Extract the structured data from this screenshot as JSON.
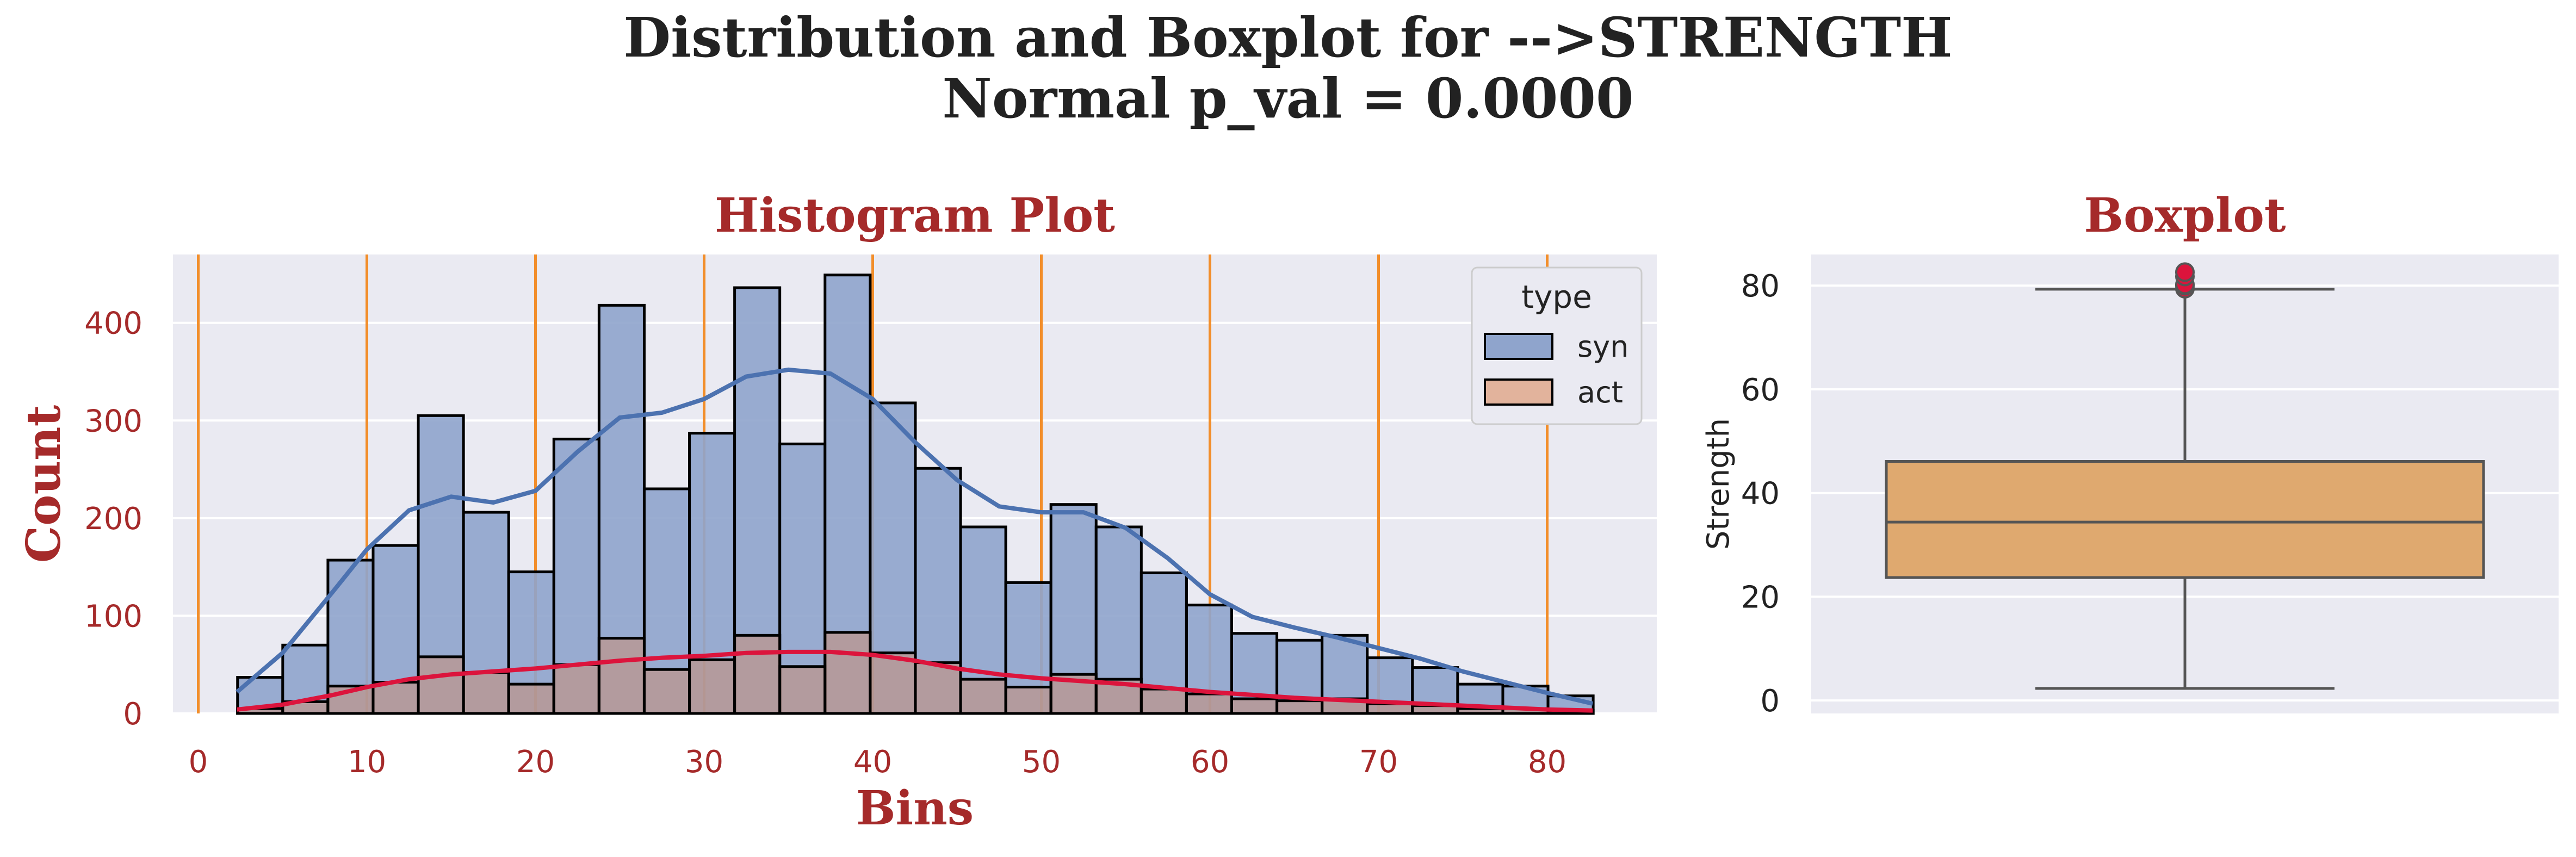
{
  "figure": {
    "suptitle_line1": "Distribution and Boxplot for -->STRENGTH",
    "suptitle_line2": "Normal p_val = 0.0000"
  },
  "colors": {
    "background": "#ffffff",
    "axes_face": "#eaeaf2",
    "grid": "#ffffff",
    "syn_fill": "#8fa4cc",
    "syn_line": "#4c72b0",
    "act_fill": "#dd8452",
    "act_line": "#dc143c",
    "bar_edge": "#000000",
    "vline": "#f28e2b",
    "title_red": "#a52a2a",
    "tick_red": "#a52a2a",
    "box_fill": "#dfa96f",
    "box_edge": "#555555",
    "outlier": "#dc143c"
  },
  "chart_data": [
    {
      "type": "bar",
      "title": "Histogram Plot",
      "xlabel": "Bins",
      "ylabel": "Count",
      "xlim": [
        -1.5,
        86.5
      ],
      "ylim": [
        0,
        470
      ],
      "xticks": [
        0,
        10,
        20,
        30,
        40,
        50,
        60,
        70,
        80
      ],
      "yticks": [
        0,
        100,
        200,
        300,
        400
      ],
      "vlines": [
        0,
        10,
        20,
        30,
        40,
        50,
        60,
        70,
        80
      ],
      "grid": true,
      "legend": {
        "title": "type",
        "placement": "upper right",
        "entries": [
          {
            "label": "syn",
            "series": "syn"
          },
          {
            "label": "act",
            "series": "act"
          }
        ]
      },
      "bins": {
        "start": 2.33,
        "width": 2.68,
        "count": 30
      },
      "series": [
        {
          "name": "syn",
          "values": [
            37,
            70,
            157,
            172,
            305,
            206,
            145,
            281,
            418,
            230,
            287,
            436,
            276,
            449,
            318,
            251,
            191,
            134,
            214,
            191,
            144,
            111,
            82,
            75,
            80,
            57,
            47,
            30,
            28,
            18
          ],
          "kde": {
            "x": [
              2.3,
              5,
              8,
              10,
              12.5,
              15,
              17.5,
              20,
              22.5,
              25,
              27.5,
              30,
              32.5,
              35,
              37.5,
              40,
              42.5,
              45,
              47.5,
              50,
              52.5,
              55,
              57.5,
              60,
              62.5,
              65,
              67.5,
              70,
              72.5,
              75,
              77.5,
              80,
              82.7
            ],
            "y": [
              22,
              62,
              125,
              168,
              208,
              222,
              216,
              228,
              268,
              303,
              308,
              322,
              345,
              352,
              348,
              322,
              278,
              239,
              212,
              206,
              206,
              190,
              159,
              122,
              99,
              88,
              78,
              67,
              56,
              43,
              32,
              21,
              10
            ]
          }
        },
        {
          "name": "act",
          "values": [
            5,
            12,
            28,
            32,
            58,
            42,
            30,
            50,
            77,
            45,
            55,
            80,
            48,
            83,
            62,
            52,
            35,
            27,
            40,
            35,
            25,
            20,
            15,
            13,
            15,
            10,
            8,
            5,
            5,
            3
          ],
          "kde": {
            "x": [
              2.3,
              5,
              8,
              10,
              12.5,
              15,
              17.5,
              20,
              22.5,
              25,
              27.5,
              30,
              32.5,
              35,
              37.5,
              40,
              42.5,
              45,
              47.5,
              50,
              52.5,
              55,
              57.5,
              60,
              62.5,
              65,
              67.5,
              70,
              72.5,
              75,
              77.5,
              80,
              82.7
            ],
            "y": [
              4,
              9,
              19,
              27,
              35,
              40,
              43,
              46,
              50,
              54,
              57,
              59,
              62,
              63,
              63,
              60,
              54,
              46,
              40,
              36,
              33,
              30,
              26,
              22,
              19,
              16,
              14,
              12,
              10,
              8,
              6,
              4,
              3
            ]
          }
        }
      ]
    },
    {
      "type": "box",
      "title": "Boxplot",
      "ylabel": "Strength",
      "ylim": [
        -2.5,
        86
      ],
      "yticks": [
        0,
        20,
        40,
        60,
        80
      ],
      "grid": true,
      "box": {
        "whisker_low": 2.33,
        "q1": 23.7,
        "median": 34.4,
        "q3": 46.1,
        "whisker_high": 79.3
      },
      "outliers": [
        79.4,
        79.99,
        80.2,
        81.75,
        82.6
      ]
    }
  ]
}
